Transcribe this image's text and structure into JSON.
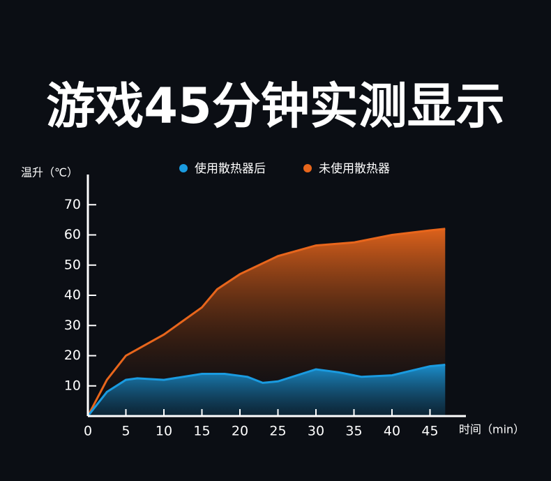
{
  "chart_data": {
    "type": "area",
    "title": "游戏45分钟实测显示",
    "y_label": "温升（℃）",
    "x_label": "时间（min）",
    "xlim": [
      0,
      50
    ],
    "ylim": [
      0,
      80
    ],
    "xticks": [
      0,
      5,
      10,
      15,
      20,
      25,
      30,
      35,
      40,
      45
    ],
    "yticks": [
      10,
      20,
      30,
      40,
      50,
      60,
      70
    ],
    "series": [
      {
        "name": "使用散热器后",
        "color": "#1a9be0",
        "x": [
          0,
          2.5,
          5,
          6.5,
          10,
          15,
          18,
          21,
          23,
          25,
          30,
          33,
          36,
          40,
          45,
          47
        ],
        "values": [
          0,
          8,
          12,
          12.5,
          12,
          14,
          14,
          13,
          11,
          11.5,
          15.5,
          14.5,
          13,
          13.5,
          16.5,
          17
        ]
      },
      {
        "name": "未使用散热器",
        "color": "#e8661c",
        "x": [
          0,
          2.5,
          5,
          10,
          15,
          17,
          20,
          25,
          30,
          35,
          40,
          45,
          47
        ],
        "values": [
          0,
          12,
          20,
          27,
          36,
          42,
          47,
          53,
          56.5,
          57.5,
          60,
          61.5,
          62
        ]
      }
    ]
  }
}
